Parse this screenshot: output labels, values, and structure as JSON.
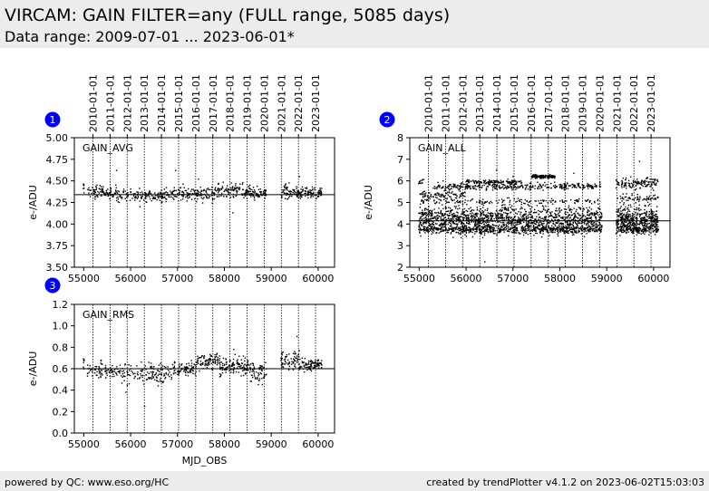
{
  "header": {
    "title": "VIRCAM: GAIN FILTER=any (FULL range, 5085 days)",
    "subtitle": "Data range: 2009-07-01 ... 2023-06-01*"
  },
  "footer": {
    "left": "powered by QC: www.eso.org/HC",
    "right": "created by trendPlotter v4.1.2 on 2023-06-02T15:03:03"
  },
  "chart_data": [
    {
      "type": "scatter",
      "panel_number": "1",
      "label": "GAIN_AVG",
      "ylabel": "e-/ADU",
      "xlabel": "",
      "xlim": [
        54800,
        60350
      ],
      "ylim": [
        3.5,
        5.0
      ],
      "yticks": [
        3.5,
        3.75,
        4.0,
        4.25,
        4.5,
        4.75,
        5.0
      ],
      "ytick_labels": [
        "3.50",
        "3.75",
        "4.00",
        "4.25",
        "4.50",
        "4.75",
        "5.00"
      ],
      "xticks": [
        55000,
        56000,
        57000,
        58000,
        59000,
        60000
      ],
      "xtick_labels": [
        "55000",
        "56000",
        "57000",
        "58000",
        "59000",
        "60000"
      ],
      "reference_line": 4.34,
      "date_axis_labels": [
        "2010-01-01",
        "2011-01-01",
        "2012-01-01",
        "2013-01-01",
        "2014-01-01",
        "2015-01-01",
        "2016-01-01",
        "2017-01-01",
        "2018-01-01",
        "2019-01-01",
        "2020-01-01",
        "2021-01-01",
        "2022-01-01",
        "2023-01-01"
      ],
      "date_axis_mjd": [
        55197,
        55562,
        55927,
        56293,
        56658,
        57023,
        57388,
        57754,
        58119,
        58484,
        58849,
        59215,
        59580,
        59945
      ],
      "segments": [
        {
          "x": [
            54990,
            55010
          ],
          "center": 4.42,
          "spread": 0.05,
          "n": 8
        },
        {
          "x": [
            55080,
            55700
          ],
          "center": 4.37,
          "spread": 0.05,
          "n": 90
        },
        {
          "x": [
            55700,
            56750
          ],
          "center": 4.33,
          "spread": 0.05,
          "n": 140
        },
        {
          "x": [
            56750,
            57800
          ],
          "center": 4.35,
          "spread": 0.06,
          "n": 160
        },
        {
          "x": [
            57800,
            58550
          ],
          "center": 4.38,
          "spread": 0.06,
          "n": 120
        },
        {
          "x": [
            58550,
            58900
          ],
          "center": 4.35,
          "spread": 0.05,
          "n": 60
        },
        {
          "x": [
            59200,
            59650
          ],
          "center": 4.37,
          "spread": 0.06,
          "n": 80
        },
        {
          "x": [
            59650,
            60080
          ],
          "center": 4.36,
          "spread": 0.04,
          "n": 80
        }
      ],
      "outliers": [
        [
          55700,
          4.62
        ],
        [
          56960,
          4.62
        ],
        [
          57450,
          4.52
        ],
        [
          58180,
          4.13
        ],
        [
          59600,
          4.55
        ],
        [
          56200,
          4.2
        ]
      ]
    },
    {
      "type": "scatter",
      "panel_number": "2",
      "label": "GAIN_ALL",
      "ylabel": "e-/ADU",
      "xlabel": "",
      "xlim": [
        54800,
        60350
      ],
      "ylim": [
        2,
        8
      ],
      "yticks": [
        2,
        3,
        4,
        5,
        6,
        7,
        8
      ],
      "ytick_labels": [
        "2",
        "3",
        "4",
        "5",
        "6",
        "7",
        "8"
      ],
      "xticks": [
        55000,
        56000,
        57000,
        58000,
        59000,
        60000
      ],
      "xtick_labels": [
        "55000",
        "56000",
        "57000",
        "58000",
        "59000",
        "60000"
      ],
      "reference_line": 4.15,
      "date_axis_labels": [
        "2010-01-01",
        "2011-01-01",
        "2012-01-01",
        "2013-01-01",
        "2014-01-01",
        "2015-01-01",
        "2016-01-01",
        "2017-01-01",
        "2018-01-01",
        "2019-01-01",
        "2020-01-01",
        "2021-01-01",
        "2022-01-01",
        "2023-01-01"
      ],
      "date_axis_mjd": [
        55197,
        55562,
        55927,
        56293,
        56658,
        57023,
        57388,
        57754,
        58119,
        58484,
        58849,
        59215,
        59580,
        59945
      ],
      "segments": [
        {
          "x": [
            54990,
            58900
          ],
          "center": 4.2,
          "spread": 0.45,
          "n": 1400
        },
        {
          "x": [
            59200,
            60100
          ],
          "center": 4.2,
          "spread": 0.45,
          "n": 420
        },
        {
          "x": [
            54990,
            58900
          ],
          "center": 3.75,
          "spread": 0.12,
          "n": 500
        },
        {
          "x": [
            59200,
            60100
          ],
          "center": 3.75,
          "spread": 0.12,
          "n": 150
        },
        {
          "x": [
            55300,
            58900
          ],
          "center": 5.75,
          "spread": 0.12,
          "n": 350
        },
        {
          "x": [
            56000,
            57200
          ],
          "center": 5.95,
          "spread": 0.06,
          "n": 120
        },
        {
          "x": [
            57400,
            57900
          ],
          "center": 6.2,
          "spread": 0.06,
          "n": 120
        },
        {
          "x": [
            55000,
            56000
          ],
          "center": 5.35,
          "spread": 0.12,
          "n": 80
        },
        {
          "x": [
            55000,
            58900
          ],
          "center": 5.05,
          "spread": 0.1,
          "n": 150
        },
        {
          "x": [
            59200,
            60100
          ],
          "center": 5.9,
          "spread": 0.2,
          "n": 130
        },
        {
          "x": [
            59200,
            60100
          ],
          "center": 5.2,
          "spread": 0.12,
          "n": 60
        },
        {
          "x": [
            54990,
            55100
          ],
          "center": 6.0,
          "spread": 0.1,
          "n": 12
        }
      ],
      "outliers": [
        [
          56400,
          2.25
        ],
        [
          56650,
          6.5
        ],
        [
          59700,
          6.9
        ],
        [
          58300,
          6.35
        ],
        [
          57000,
          6.2
        ]
      ]
    },
    {
      "type": "scatter",
      "panel_number": "3",
      "label": "GAIN_RMS",
      "ylabel": "e-/ADU",
      "xlabel": "MJD_OBS",
      "xlim": [
        54800,
        60350
      ],
      "ylim": [
        0.0,
        1.2
      ],
      "yticks": [
        0.0,
        0.2,
        0.4,
        0.6,
        0.8,
        1.0,
        1.2
      ],
      "ytick_labels": [
        "0.0",
        "0.2",
        "0.4",
        "0.6",
        "0.8",
        "1.0",
        "1.2"
      ],
      "xticks": [
        55000,
        56000,
        57000,
        58000,
        59000,
        60000
      ],
      "xtick_labels": [
        "55000",
        "56000",
        "57000",
        "58000",
        "59000",
        "60000"
      ],
      "reference_line": 0.6,
      "date_axis_mjd": [
        55197,
        55562,
        55927,
        56293,
        56658,
        57023,
        57388,
        57754,
        58119,
        58484,
        58849,
        59215,
        59580,
        59945
      ],
      "segments": [
        {
          "x": [
            54990,
            55010
          ],
          "center": 0.63,
          "spread": 0.06,
          "n": 8
        },
        {
          "x": [
            55080,
            55800
          ],
          "center": 0.58,
          "spread": 0.05,
          "n": 90
        },
        {
          "x": [
            55800,
            56900
          ],
          "center": 0.56,
          "spread": 0.07,
          "n": 140
        },
        {
          "x": [
            56900,
            57400
          ],
          "center": 0.6,
          "spread": 0.05,
          "n": 80
        },
        {
          "x": [
            57400,
            57900
          ],
          "center": 0.67,
          "spread": 0.05,
          "n": 90
        },
        {
          "x": [
            57900,
            58550
          ],
          "center": 0.62,
          "spread": 0.06,
          "n": 120
        },
        {
          "x": [
            58550,
            58900
          ],
          "center": 0.56,
          "spread": 0.07,
          "n": 60
        },
        {
          "x": [
            59200,
            59600
          ],
          "center": 0.68,
          "spread": 0.06,
          "n": 70
        },
        {
          "x": [
            59600,
            60080
          ],
          "center": 0.64,
          "spread": 0.04,
          "n": 90
        }
      ],
      "outliers": [
        [
          56300,
          0.25
        ],
        [
          59550,
          0.9
        ],
        [
          58200,
          0.78
        ],
        [
          55900,
          0.38
        ],
        [
          58850,
          0.28
        ]
      ]
    }
  ]
}
